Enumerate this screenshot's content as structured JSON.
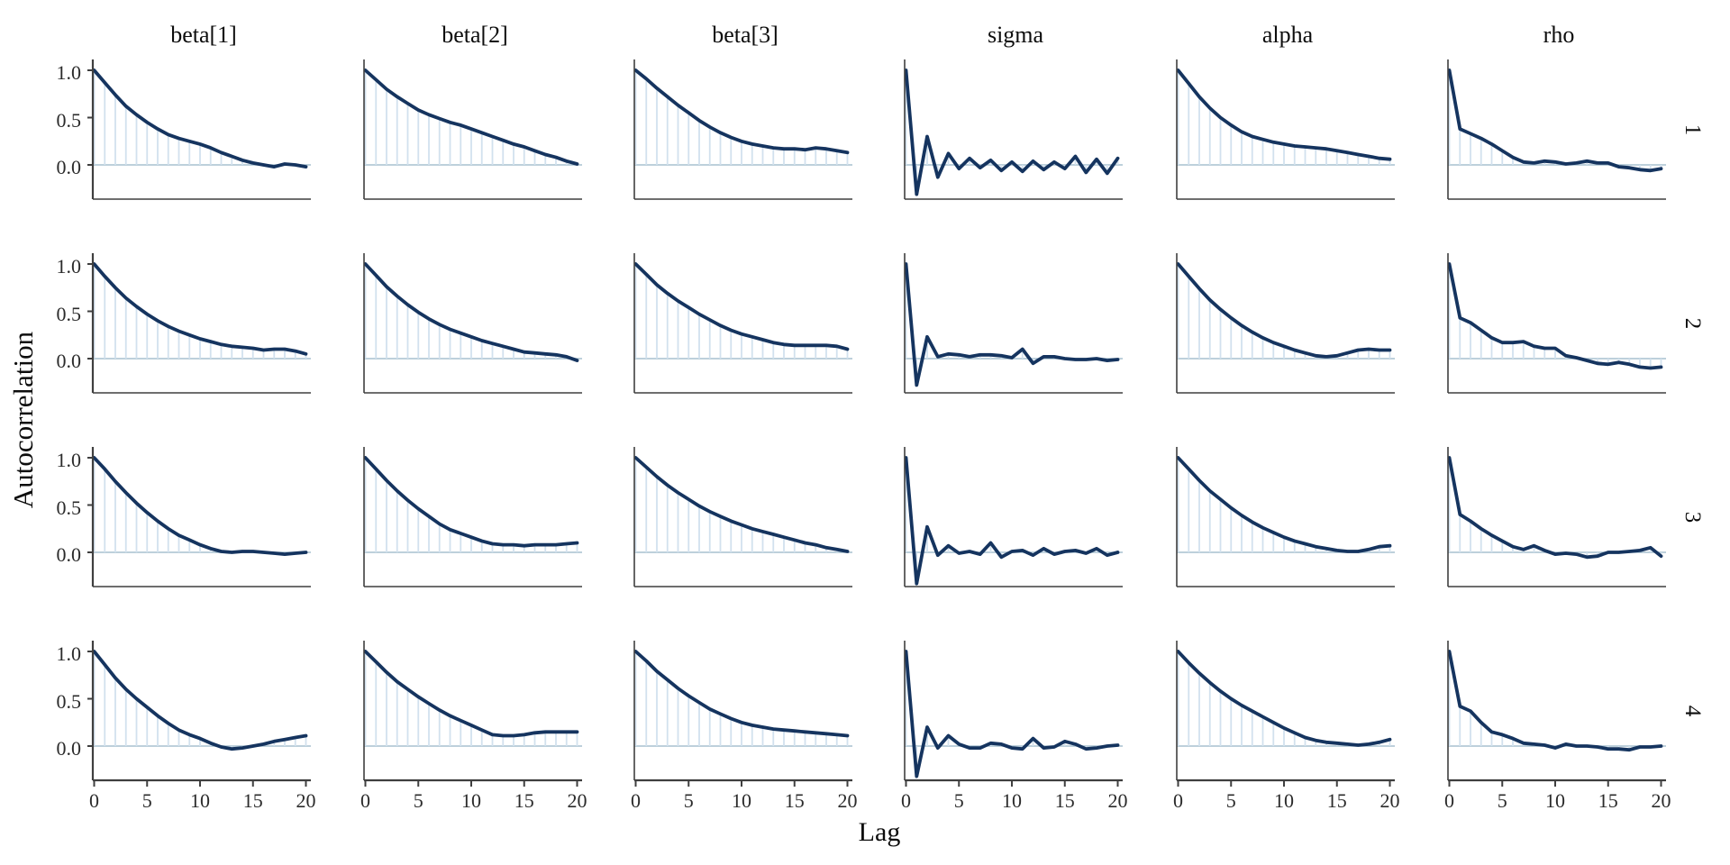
{
  "figure": {
    "xlabel": "Lag",
    "ylabel": "Autocorrelation"
  },
  "chart_data": {
    "type": "line",
    "subtype": "autocorrelation-facet-grid",
    "title": "",
    "xlabel": "Lag",
    "ylabel": "Autocorrelation",
    "columns": [
      "beta[1]",
      "beta[2]",
      "beta[3]",
      "sigma",
      "alpha",
      "rho"
    ],
    "rows": [
      "1",
      "2",
      "3",
      "4"
    ],
    "x": [
      0,
      1,
      2,
      3,
      4,
      5,
      6,
      7,
      8,
      9,
      10,
      11,
      12,
      13,
      14,
      15,
      16,
      17,
      18,
      19,
      20
    ],
    "x_ticks": [
      0,
      5,
      10,
      15,
      20
    ],
    "x_tick_labels": [
      "0",
      "5",
      "10",
      "15",
      "20"
    ],
    "y_ticks": [
      1.0,
      0.5,
      0.0
    ],
    "y_tick_labels": [
      "1.0",
      "0.5",
      "0.0"
    ],
    "ylim": [
      -0.36,
      1.12
    ],
    "xlim": [
      0,
      20
    ],
    "grid": false,
    "legend": "none",
    "colors": {
      "acf_line": "#15345f",
      "lag_segment": "#d2e1ee",
      "zero_line": "#a7c0cf",
      "axis": "#3f3f3f",
      "text": "#0d0d0d",
      "tick_text": "#2b2b2b",
      "background": "#ffffff"
    },
    "facets": [
      {
        "row": "1",
        "column": "beta[1]",
        "values": [
          1.0,
          0.87,
          0.74,
          0.62,
          0.53,
          0.45,
          0.38,
          0.32,
          0.28,
          0.25,
          0.22,
          0.18,
          0.13,
          0.09,
          0.05,
          0.02,
          0.0,
          -0.02,
          0.01,
          0.0,
          -0.02
        ]
      },
      {
        "row": "1",
        "column": "beta[2]",
        "values": [
          1.0,
          0.9,
          0.8,
          0.72,
          0.65,
          0.58,
          0.53,
          0.49,
          0.45,
          0.42,
          0.38,
          0.34,
          0.3,
          0.26,
          0.22,
          0.19,
          0.15,
          0.11,
          0.08,
          0.04,
          0.01
        ]
      },
      {
        "row": "1",
        "column": "beta[3]",
        "values": [
          1.0,
          0.91,
          0.81,
          0.72,
          0.63,
          0.55,
          0.47,
          0.4,
          0.34,
          0.29,
          0.25,
          0.22,
          0.2,
          0.18,
          0.17,
          0.17,
          0.16,
          0.18,
          0.17,
          0.15,
          0.13
        ]
      },
      {
        "row": "1",
        "column": "sigma",
        "values": [
          1.0,
          -0.31,
          0.3,
          -0.13,
          0.12,
          -0.04,
          0.07,
          -0.03,
          0.05,
          -0.06,
          0.03,
          -0.07,
          0.04,
          -0.05,
          0.03,
          -0.04,
          0.09,
          -0.08,
          0.06,
          -0.09,
          0.07
        ]
      },
      {
        "row": "1",
        "column": "alpha",
        "values": [
          1.0,
          0.86,
          0.72,
          0.6,
          0.5,
          0.42,
          0.35,
          0.3,
          0.27,
          0.24,
          0.22,
          0.2,
          0.19,
          0.18,
          0.17,
          0.15,
          0.13,
          0.11,
          0.09,
          0.07,
          0.06
        ]
      },
      {
        "row": "1",
        "column": "rho",
        "values": [
          1.0,
          0.38,
          0.33,
          0.28,
          0.22,
          0.15,
          0.08,
          0.03,
          0.02,
          0.04,
          0.03,
          0.01,
          0.02,
          0.04,
          0.02,
          0.02,
          -0.02,
          -0.03,
          -0.05,
          -0.06,
          -0.04
        ]
      },
      {
        "row": "2",
        "column": "beta[1]",
        "values": [
          1.0,
          0.87,
          0.75,
          0.64,
          0.55,
          0.47,
          0.4,
          0.34,
          0.29,
          0.25,
          0.21,
          0.18,
          0.15,
          0.13,
          0.12,
          0.11,
          0.09,
          0.1,
          0.1,
          0.08,
          0.05
        ]
      },
      {
        "row": "2",
        "column": "beta[2]",
        "values": [
          1.0,
          0.88,
          0.76,
          0.66,
          0.57,
          0.49,
          0.42,
          0.36,
          0.31,
          0.27,
          0.23,
          0.19,
          0.16,
          0.13,
          0.1,
          0.07,
          0.06,
          0.05,
          0.04,
          0.02,
          -0.02
        ]
      },
      {
        "row": "2",
        "column": "beta[3]",
        "values": [
          1.0,
          0.89,
          0.78,
          0.69,
          0.61,
          0.54,
          0.47,
          0.41,
          0.35,
          0.3,
          0.26,
          0.23,
          0.2,
          0.17,
          0.15,
          0.14,
          0.14,
          0.14,
          0.14,
          0.13,
          0.1
        ]
      },
      {
        "row": "2",
        "column": "sigma",
        "values": [
          1.0,
          -0.28,
          0.23,
          0.02,
          0.05,
          0.04,
          0.02,
          0.04,
          0.04,
          0.03,
          0.01,
          0.1,
          -0.05,
          0.02,
          0.02,
          0.0,
          -0.01,
          -0.01,
          0.0,
          -0.02,
          -0.01
        ]
      },
      {
        "row": "2",
        "column": "alpha",
        "values": [
          1.0,
          0.87,
          0.74,
          0.62,
          0.52,
          0.43,
          0.35,
          0.28,
          0.22,
          0.17,
          0.13,
          0.09,
          0.06,
          0.03,
          0.02,
          0.03,
          0.06,
          0.09,
          0.1,
          0.09,
          0.09
        ]
      },
      {
        "row": "2",
        "column": "rho",
        "values": [
          1.0,
          0.43,
          0.38,
          0.3,
          0.22,
          0.17,
          0.17,
          0.18,
          0.13,
          0.11,
          0.11,
          0.03,
          0.01,
          -0.02,
          -0.05,
          -0.06,
          -0.04,
          -0.06,
          -0.09,
          -0.1,
          -0.09
        ]
      },
      {
        "row": "3",
        "column": "beta[1]",
        "values": [
          1.0,
          0.88,
          0.75,
          0.63,
          0.52,
          0.42,
          0.33,
          0.25,
          0.18,
          0.13,
          0.08,
          0.04,
          0.01,
          0.0,
          0.01,
          0.01,
          0.0,
          -0.01,
          -0.02,
          -0.01,
          0.0
        ]
      },
      {
        "row": "3",
        "column": "beta[2]",
        "values": [
          1.0,
          0.88,
          0.76,
          0.65,
          0.55,
          0.46,
          0.38,
          0.3,
          0.24,
          0.2,
          0.16,
          0.12,
          0.09,
          0.08,
          0.08,
          0.07,
          0.08,
          0.08,
          0.08,
          0.09,
          0.1
        ]
      },
      {
        "row": "3",
        "column": "beta[3]",
        "values": [
          1.0,
          0.9,
          0.8,
          0.71,
          0.63,
          0.56,
          0.49,
          0.43,
          0.38,
          0.33,
          0.29,
          0.25,
          0.22,
          0.19,
          0.16,
          0.13,
          0.1,
          0.08,
          0.05,
          0.03,
          0.01
        ]
      },
      {
        "row": "3",
        "column": "sigma",
        "values": [
          1.0,
          -0.33,
          0.27,
          -0.03,
          0.07,
          -0.01,
          0.01,
          -0.02,
          0.1,
          -0.05,
          0.01,
          0.02,
          -0.03,
          0.04,
          -0.02,
          0.01,
          0.02,
          -0.01,
          0.04,
          -0.03,
          0.0
        ]
      },
      {
        "row": "3",
        "column": "alpha",
        "values": [
          1.0,
          0.88,
          0.76,
          0.65,
          0.56,
          0.47,
          0.39,
          0.32,
          0.26,
          0.21,
          0.16,
          0.12,
          0.09,
          0.06,
          0.04,
          0.02,
          0.01,
          0.01,
          0.03,
          0.06,
          0.07
        ]
      },
      {
        "row": "3",
        "column": "rho",
        "values": [
          1.0,
          0.4,
          0.33,
          0.25,
          0.18,
          0.12,
          0.06,
          0.03,
          0.07,
          0.02,
          -0.02,
          -0.01,
          -0.02,
          -0.05,
          -0.04,
          0.0,
          0.0,
          0.01,
          0.02,
          0.05,
          -0.04
        ]
      },
      {
        "row": "4",
        "column": "beta[1]",
        "values": [
          1.0,
          0.86,
          0.72,
          0.6,
          0.5,
          0.41,
          0.32,
          0.24,
          0.17,
          0.12,
          0.08,
          0.03,
          -0.01,
          -0.03,
          -0.02,
          0.0,
          0.02,
          0.05,
          0.07,
          0.09,
          0.11
        ]
      },
      {
        "row": "4",
        "column": "beta[2]",
        "values": [
          1.0,
          0.89,
          0.78,
          0.68,
          0.6,
          0.52,
          0.45,
          0.38,
          0.32,
          0.27,
          0.22,
          0.17,
          0.12,
          0.11,
          0.11,
          0.12,
          0.14,
          0.15,
          0.15,
          0.15,
          0.15
        ]
      },
      {
        "row": "4",
        "column": "beta[3]",
        "values": [
          1.0,
          0.9,
          0.79,
          0.7,
          0.61,
          0.53,
          0.46,
          0.39,
          0.34,
          0.29,
          0.25,
          0.22,
          0.2,
          0.18,
          0.17,
          0.16,
          0.15,
          0.14,
          0.13,
          0.12,
          0.11
        ]
      },
      {
        "row": "4",
        "column": "sigma",
        "values": [
          1.0,
          -0.32,
          0.2,
          -0.02,
          0.11,
          0.02,
          -0.02,
          -0.02,
          0.03,
          0.02,
          -0.02,
          -0.03,
          0.08,
          -0.02,
          -0.01,
          0.05,
          0.02,
          -0.03,
          -0.02,
          0.0,
          0.01
        ]
      },
      {
        "row": "4",
        "column": "alpha",
        "values": [
          1.0,
          0.88,
          0.77,
          0.67,
          0.58,
          0.5,
          0.43,
          0.37,
          0.31,
          0.25,
          0.19,
          0.14,
          0.09,
          0.06,
          0.04,
          0.03,
          0.02,
          0.01,
          0.02,
          0.04,
          0.07
        ]
      },
      {
        "row": "4",
        "column": "rho",
        "values": [
          1.0,
          0.42,
          0.37,
          0.25,
          0.15,
          0.12,
          0.08,
          0.03,
          0.02,
          0.01,
          -0.02,
          0.02,
          0.0,
          0.0,
          -0.01,
          -0.03,
          -0.03,
          -0.04,
          -0.01,
          -0.01,
          0.0
        ]
      }
    ]
  }
}
